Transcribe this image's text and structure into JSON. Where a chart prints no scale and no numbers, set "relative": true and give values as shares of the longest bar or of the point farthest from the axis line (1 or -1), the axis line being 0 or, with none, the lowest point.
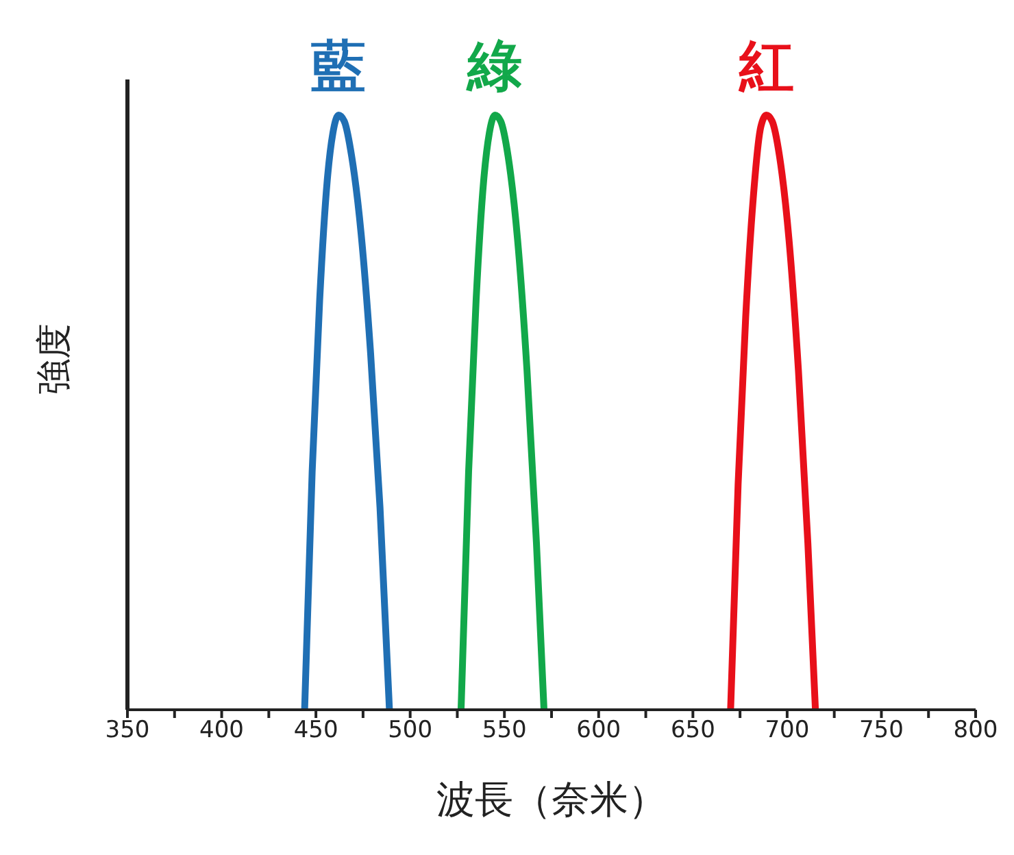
{
  "chart_data": {
    "type": "line",
    "relative": true,
    "xlabel": "波長（奈米）",
    "ylabel": "強度",
    "xlim": [
      350,
      800
    ],
    "xticks": [
      350,
      {
        "value": 375,
        "label": null
      },
      400,
      {
        "value": 425,
        "label": null
      },
      450,
      {
        "value": 475,
        "label": null
      },
      500,
      {
        "value": 525,
        "label": null
      },
      550,
      {
        "value": 575,
        "label": null
      },
      600,
      {
        "value": 625,
        "label": null
      },
      650,
      {
        "value": 675,
        "label": null
      },
      700,
      {
        "value": 725,
        "label": null
      },
      750,
      {
        "value": 775,
        "label": null
      },
      800
    ],
    "tick_labels": "x",
    "marker": "none",
    "line_style": "solid",
    "series": [
      {
        "name": "藍",
        "color": "#1f6fb4",
        "x": [
          444,
          448,
          452,
          456,
          459,
          462,
          465,
          469,
          474,
          479,
          484,
          489
        ],
        "values": [
          0,
          0.4,
          0.69,
          0.89,
          0.97,
          1,
          0.99,
          0.93,
          0.8,
          0.6,
          0.34,
          0
        ]
      },
      {
        "name": "綠",
        "color": "#12a84a",
        "x": [
          527,
          531,
          535,
          539,
          542,
          545,
          548,
          552,
          557,
          562,
          567,
          571
        ],
        "values": [
          0,
          0.4,
          0.69,
          0.89,
          0.97,
          1,
          0.99,
          0.93,
          0.79,
          0.57,
          0.28,
          0
        ]
      },
      {
        "name": "紅",
        "color": "#e8101a",
        "x": [
          670,
          674,
          678,
          682,
          686,
          689,
          692,
          696,
          701,
          706,
          711,
          715
        ],
        "values": [
          0,
          0.38,
          0.66,
          0.86,
          0.98,
          1,
          0.99,
          0.93,
          0.79,
          0.57,
          0.28,
          0
        ]
      }
    ]
  }
}
